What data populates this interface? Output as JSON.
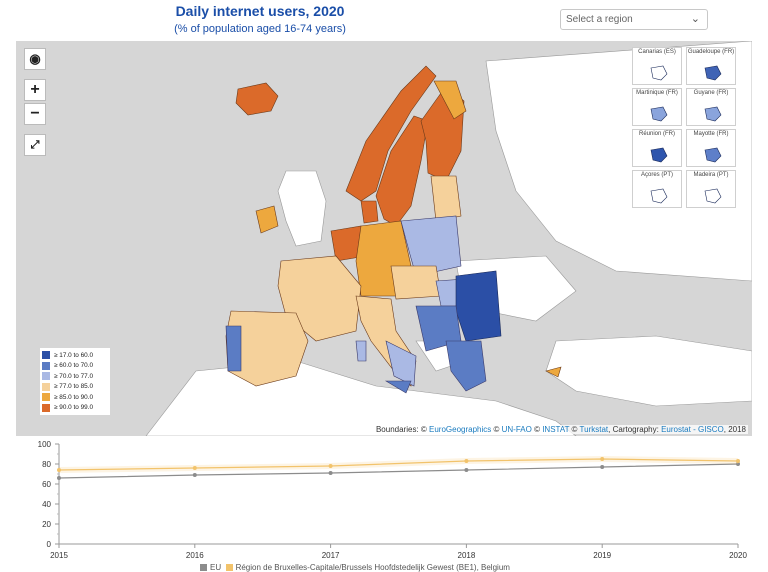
{
  "header": {
    "title": "Daily internet users, 2020",
    "subtitle": "(% of population aged 16-74 years)",
    "region_select": "Select a region"
  },
  "icons": {
    "globe": "globe-icon",
    "zoom_in": "+",
    "zoom_out": "−",
    "fullscreen": "expand-icon",
    "chevron": "chevron-down-icon"
  },
  "insets": [
    {
      "label": "Canarias (ES)",
      "color": "#ffffff"
    },
    {
      "label": "Guadeloupe (FR)",
      "color": "#3f63b5"
    },
    {
      "label": "Martinique (FR)",
      "color": "#8aa4dc"
    },
    {
      "label": "Guyane (FR)",
      "color": "#8aa4dc"
    },
    {
      "label": "Réunion (FR)",
      "color": "#2e55ad"
    },
    {
      "label": "Mayotte (FR)",
      "color": "#5e7fc9"
    },
    {
      "label": "Açores (PT)",
      "color": "#ffffff"
    },
    {
      "label": "Madeira (PT)",
      "color": "#ffffff"
    }
  ],
  "legend": [
    {
      "label": "≥ 17.0 to 60.0",
      "color": "#2b4fa6"
    },
    {
      "label": "≥ 60.0 to 70.0",
      "color": "#5b7cc4"
    },
    {
      "label": "≥ 70.0 to 77.0",
      "color": "#aab9e4"
    },
    {
      "label": "≥ 77.0 to 85.0",
      "color": "#f5d19b"
    },
    {
      "label": "≥ 85.0 to 90.0",
      "color": "#eda83e"
    },
    {
      "label": "≥ 90.0 to 99.0",
      "color": "#db6a2a"
    }
  ],
  "credit": {
    "prefix": "Boundaries: © ",
    "l1": "EuroGeographics",
    "t1": " © ",
    "l2": "UN-FAO",
    "t2": " © ",
    "l3": "INSTAT",
    "t3": " © ",
    "l4": "Turkstat",
    "t4": ", Cartography: ",
    "l5": "Eurostat - GISCO",
    "t5": ", 2018"
  },
  "chart_data": {
    "type": "line",
    "x": [
      2015,
      2016,
      2017,
      2018,
      2019,
      2020
    ],
    "ylim": [
      0,
      100
    ],
    "yticks": [
      0,
      20,
      40,
      60,
      80,
      100
    ],
    "series": [
      {
        "name": "EU",
        "color": "#8c8c8c",
        "values": [
          66,
          69,
          71,
          74,
          77,
          80
        ]
      },
      {
        "name": "Région de Bruxelles-Capitale/Brussels Hoofdstedelijk Gewest (BE1), Belgium",
        "color": "#f2c36b",
        "values": [
          74,
          76,
          78,
          83,
          85,
          83
        ]
      }
    ]
  },
  "bottom_legend": {
    "eu": "EU",
    "region": "Région de Bruxelles-Capitale/Brussels Hoofdstedelijk Gewest (BE1), Belgium"
  }
}
